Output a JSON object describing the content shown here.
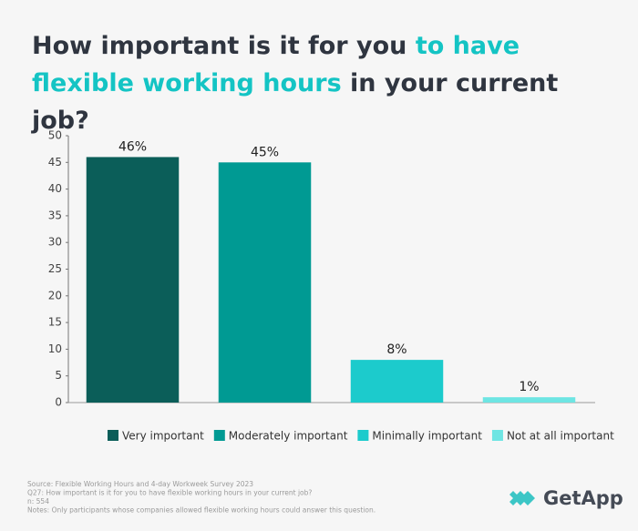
{
  "chart_data": {
    "type": "bar",
    "title": [
      "How important is it for you",
      "to have flexible working hours",
      "in your current job?"
    ],
    "categories": [
      "Very important",
      "Moderately important",
      "Minimally important",
      "Not at all important"
    ],
    "values": [
      46,
      45,
      8,
      1
    ],
    "value_labels": [
      "46%",
      "45%",
      "8%",
      "1%"
    ],
    "colors": [
      "#0b5e59",
      "#009a93",
      "#1ccbcc",
      "#6ee5e3"
    ],
    "ylim": [
      0,
      50
    ],
    "yticks": [
      0,
      5,
      10,
      15,
      20,
      25,
      30,
      35,
      40,
      45,
      50
    ],
    "grid": false,
    "legend": "bottom",
    "notes": [
      "Source: Flexible Working Hours and 4-day Workweek Survey 2023",
      "Q27: How important is it for you to have flexible working hours in your current job?",
      "n: 554",
      "Notes: Only participants whose companies allowed flexible working hours could answer this question."
    ],
    "logo": "GetApp"
  }
}
